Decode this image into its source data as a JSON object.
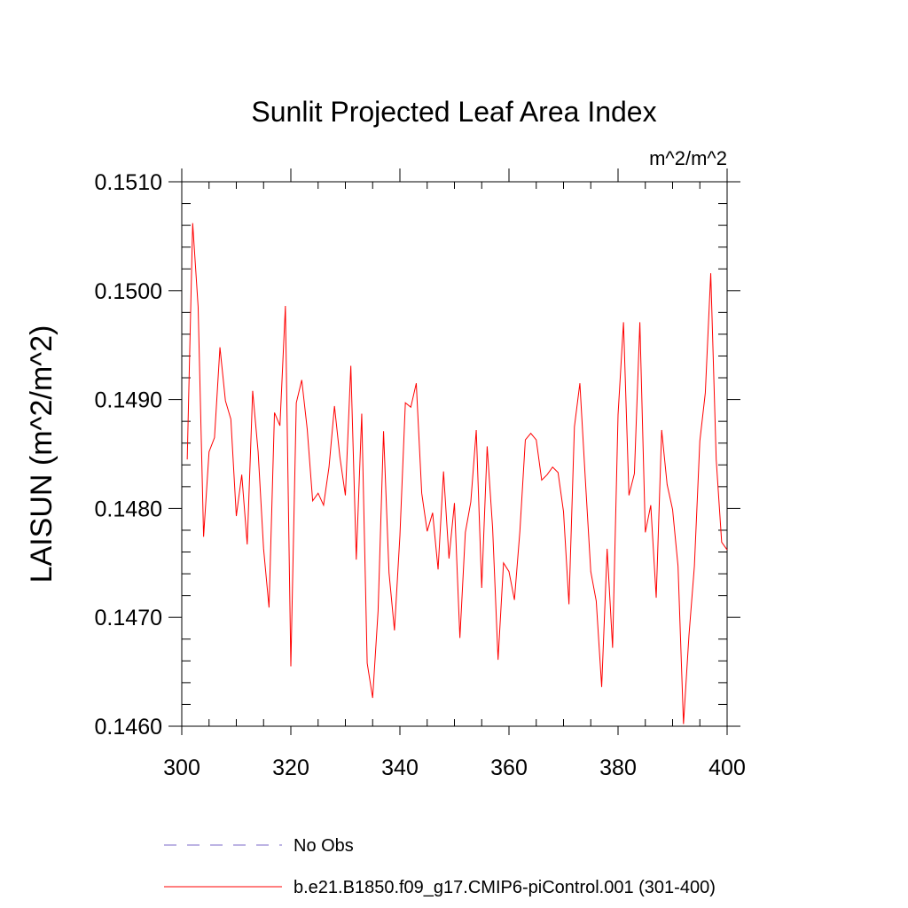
{
  "chart_data": {
    "type": "line",
    "title": "Sunlit Projected Leaf Area Index",
    "units": "m^2/m^2",
    "xlabel": "",
    "ylabel": "LAISUN  (m^2/m^2)",
    "xlim": [
      300,
      400
    ],
    "ylim": [
      0.146,
      0.151
    ],
    "xticks": [
      300,
      320,
      340,
      360,
      380,
      400
    ],
    "xtick_labels": [
      "300",
      "320",
      "340",
      "360",
      "380",
      "400"
    ],
    "yticks": [
      0.146,
      0.147,
      0.148,
      0.149,
      0.15,
      0.151
    ],
    "ytick_labels": [
      "0.1460",
      "0.1470",
      "0.1480",
      "0.1490",
      "0.1500",
      "0.1510"
    ],
    "grid": false,
    "legend_position": "bottom",
    "series": [
      {
        "name": "No Obs",
        "color": "#7b68c8",
        "style": "dashed",
        "x": [],
        "y": []
      },
      {
        "name": "b.e21.B1850.f09_g17.CMIP6-piControl.001 (301-400)",
        "color": "#ff0000",
        "style": "solid",
        "x": [
          301,
          302,
          303,
          304,
          305,
          306,
          307,
          308,
          309,
          310,
          311,
          312,
          313,
          314,
          315,
          316,
          317,
          318,
          319,
          320,
          321,
          322,
          323,
          324,
          325,
          326,
          327,
          328,
          329,
          330,
          331,
          332,
          333,
          334,
          335,
          336,
          337,
          338,
          339,
          340,
          341,
          342,
          343,
          344,
          345,
          346,
          347,
          348,
          349,
          350,
          351,
          352,
          353,
          354,
          355,
          356,
          357,
          358,
          359,
          360,
          361,
          362,
          363,
          364,
          365,
          366,
          367,
          368,
          369,
          370,
          371,
          372,
          373,
          374,
          375,
          376,
          377,
          378,
          379,
          380,
          381,
          382,
          383,
          384,
          385,
          386,
          387,
          388,
          389,
          390,
          391,
          392,
          393,
          394,
          395,
          396,
          397,
          398,
          399,
          400
        ],
        "y": [
          0.14845,
          0.15062,
          0.14985,
          0.14774,
          0.14852,
          0.14865,
          0.14948,
          0.14899,
          0.14882,
          0.14793,
          0.14831,
          0.14767,
          0.14908,
          0.14852,
          0.14763,
          0.14709,
          0.14888,
          0.14876,
          0.14986,
          0.14655,
          0.14897,
          0.14918,
          0.14873,
          0.14807,
          0.14814,
          0.14803,
          0.14838,
          0.14894,
          0.14847,
          0.14812,
          0.14931,
          0.14753,
          0.14887,
          0.14658,
          0.14626,
          0.14706,
          0.14871,
          0.14741,
          0.14688,
          0.14775,
          0.14897,
          0.14893,
          0.14915,
          0.14814,
          0.14779,
          0.14796,
          0.14744,
          0.14834,
          0.14754,
          0.14805,
          0.14681,
          0.14778,
          0.14806,
          0.14872,
          0.14727,
          0.14857,
          0.14782,
          0.14661,
          0.1475,
          0.14742,
          0.14716,
          0.14779,
          0.14863,
          0.14869,
          0.14863,
          0.14826,
          0.14831,
          0.14838,
          0.14833,
          0.14797,
          0.14712,
          0.14875,
          0.14915,
          0.14827,
          0.14742,
          0.14715,
          0.14636,
          0.14763,
          0.14672,
          0.14886,
          0.14971,
          0.14812,
          0.14832,
          0.14971,
          0.14778,
          0.14803,
          0.14718,
          0.14872,
          0.14822,
          0.14799,
          0.14747,
          0.14602,
          0.14683,
          0.14747,
          0.14862,
          0.14906,
          0.15016,
          0.14845,
          0.14769,
          0.14762
        ]
      }
    ]
  }
}
